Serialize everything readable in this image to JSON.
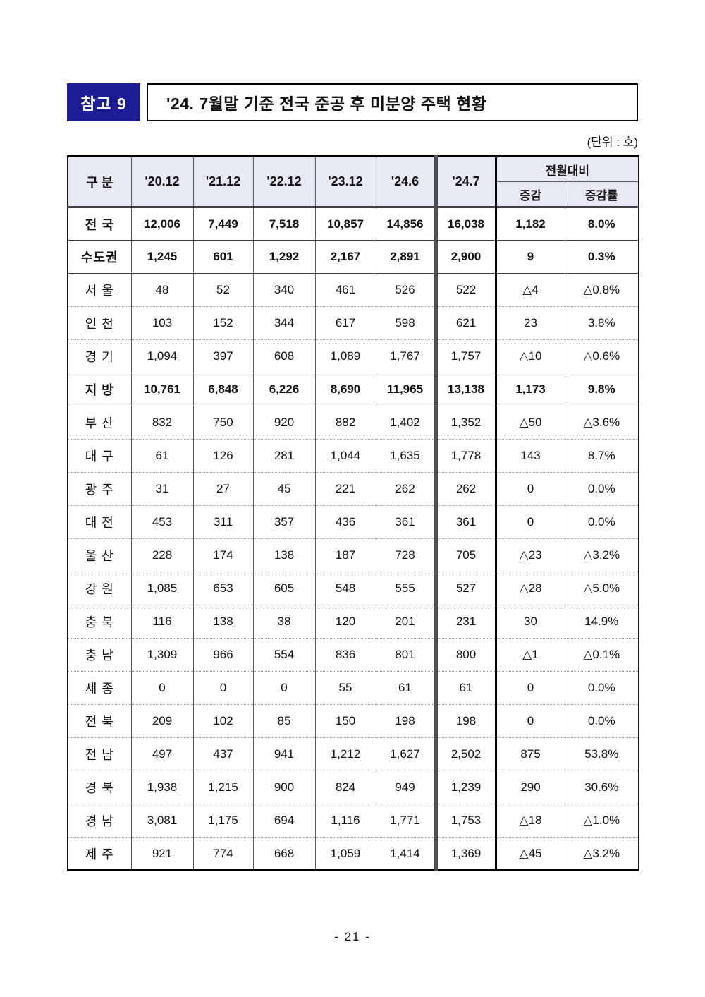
{
  "page": {
    "badge": "참고 9",
    "title": "'24. 7월말 기준 전국 준공 후 미분양 주택 현황",
    "unit_note": "(단위 : 호)",
    "page_number": "- 21 -"
  },
  "colors": {
    "badge_bg": "#1c1c94",
    "badge_text": "#ffffff",
    "table_header_bg": "#e7eaf4",
    "text": "#111111"
  },
  "table": {
    "category_header": "구 분",
    "period_headers": [
      "'20.12",
      "'21.12",
      "'22.12",
      "'23.12",
      "'24.6",
      "'24.7"
    ],
    "mom_header": "전월대비",
    "mom_sub_headers": [
      "증감",
      "증감률"
    ],
    "rows": [
      {
        "label": "전 국",
        "bold": true,
        "divider": "solid",
        "values": [
          "12,006",
          "7,449",
          "7,518",
          "10,857",
          "14,856",
          "16,038",
          "1,182",
          "8.0%"
        ]
      },
      {
        "label": "수도권",
        "bold": true,
        "divider": "solid",
        "values": [
          "1,245",
          "601",
          "1,292",
          "2,167",
          "2,891",
          "2,900",
          "9",
          "0.3%"
        ]
      },
      {
        "label": "서 울",
        "bold": false,
        "divider": "dotted",
        "values": [
          "48",
          "52",
          "340",
          "461",
          "526",
          "522",
          "△4",
          "△0.8%"
        ]
      },
      {
        "label": "인 천",
        "bold": false,
        "divider": "dotted",
        "values": [
          "103",
          "152",
          "344",
          "617",
          "598",
          "621",
          "23",
          "3.8%"
        ]
      },
      {
        "label": "경 기",
        "bold": false,
        "divider": "solid",
        "values": [
          "1,094",
          "397",
          "608",
          "1,089",
          "1,767",
          "1,757",
          "△10",
          "△0.6%"
        ]
      },
      {
        "label": "지 방",
        "bold": true,
        "divider": "solid",
        "values": [
          "10,761",
          "6,848",
          "6,226",
          "8,690",
          "11,965",
          "13,138",
          "1,173",
          "9.8%"
        ]
      },
      {
        "label": "부 산",
        "bold": false,
        "divider": "dotted",
        "values": [
          "832",
          "750",
          "920",
          "882",
          "1,402",
          "1,352",
          "△50",
          "△3.6%"
        ]
      },
      {
        "label": "대 구",
        "bold": false,
        "divider": "dotted",
        "values": [
          "61",
          "126",
          "281",
          "1,044",
          "1,635",
          "1,778",
          "143",
          "8.7%"
        ]
      },
      {
        "label": "광 주",
        "bold": false,
        "divider": "dotted",
        "values": [
          "31",
          "27",
          "45",
          "221",
          "262",
          "262",
          "0",
          "0.0%"
        ]
      },
      {
        "label": "대 전",
        "bold": false,
        "divider": "dotted",
        "values": [
          "453",
          "311",
          "357",
          "436",
          "361",
          "361",
          "0",
          "0.0%"
        ]
      },
      {
        "label": "울 산",
        "bold": false,
        "divider": "dotted",
        "values": [
          "228",
          "174",
          "138",
          "187",
          "728",
          "705",
          "△23",
          "△3.2%"
        ]
      },
      {
        "label": "강 원",
        "bold": false,
        "divider": "dotted",
        "values": [
          "1,085",
          "653",
          "605",
          "548",
          "555",
          "527",
          "△28",
          "△5.0%"
        ]
      },
      {
        "label": "충 북",
        "bold": false,
        "divider": "dotted",
        "values": [
          "116",
          "138",
          "38",
          "120",
          "201",
          "231",
          "30",
          "14.9%"
        ]
      },
      {
        "label": "충 남",
        "bold": false,
        "divider": "dotted",
        "values": [
          "1,309",
          "966",
          "554",
          "836",
          "801",
          "800",
          "△1",
          "△0.1%"
        ]
      },
      {
        "label": "세 종",
        "bold": false,
        "divider": "dotted",
        "values": [
          "0",
          "0",
          "0",
          "55",
          "61",
          "61",
          "0",
          "0.0%"
        ]
      },
      {
        "label": "전 북",
        "bold": false,
        "divider": "dotted",
        "values": [
          "209",
          "102",
          "85",
          "150",
          "198",
          "198",
          "0",
          "0.0%"
        ]
      },
      {
        "label": "전 남",
        "bold": false,
        "divider": "dotted",
        "values": [
          "497",
          "437",
          "941",
          "1,212",
          "1,627",
          "2,502",
          "875",
          "53.8%"
        ]
      },
      {
        "label": "경 북",
        "bold": false,
        "divider": "dotted",
        "values": [
          "1,938",
          "1,215",
          "900",
          "824",
          "949",
          "1,239",
          "290",
          "30.6%"
        ]
      },
      {
        "label": "경 남",
        "bold": false,
        "divider": "dotted",
        "values": [
          "3,081",
          "1,175",
          "694",
          "1,116",
          "1,771",
          "1,753",
          "△18",
          "△1.0%"
        ]
      },
      {
        "label": "제 주",
        "bold": false,
        "divider": "none",
        "values": [
          "921",
          "774",
          "668",
          "1,059",
          "1,414",
          "1,369",
          "△45",
          "△3.2%"
        ]
      }
    ]
  }
}
